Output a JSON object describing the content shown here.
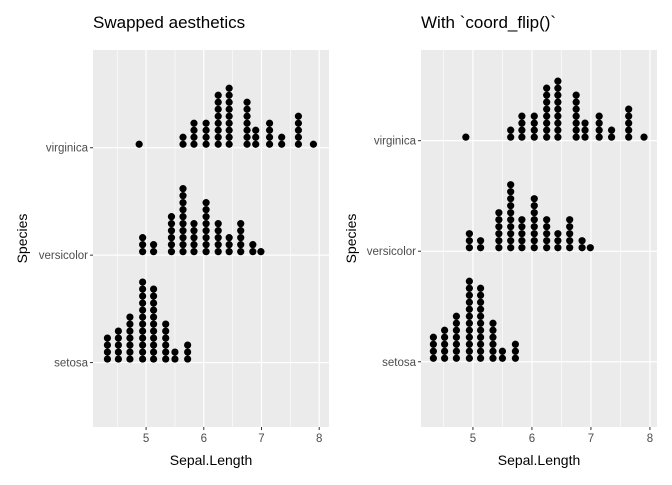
{
  "chart_data": [
    {
      "type": "dotplot",
      "title": "Swapped aesthetics",
      "xlabel": "Sepal.Length",
      "ylabel": "Species",
      "xlim": [
        4.08,
        8.17
      ],
      "ylim": [
        0.4,
        3.91
      ],
      "xticks": [
        5,
        6,
        7,
        8
      ],
      "xtick_labels": [
        "5",
        "6",
        "7",
        "8"
      ],
      "xminor": [
        4.5,
        5.5,
        6.5,
        7.5
      ],
      "categories": [
        "setosa",
        "versicolor",
        "virginica"
      ],
      "grid": true,
      "series": [
        {
          "name": "setosa",
          "bins": [
            4.33,
            4.52,
            4.72,
            4.94,
            5.13,
            5.34,
            5.5,
            5.72
          ],
          "counts": [
            4,
            5,
            7,
            12,
            11,
            6,
            2,
            3
          ]
        },
        {
          "name": "versicolor",
          "bins": [
            4.94,
            5.13,
            5.44,
            5.64,
            5.83,
            6.04,
            6.25,
            6.44,
            6.64,
            6.85,
            6.99
          ],
          "counts": [
            3,
            2,
            6,
            10,
            5,
            8,
            5,
            3,
            5,
            2,
            1
          ]
        },
        {
          "name": "virginica",
          "bins": [
            4.88,
            5.64,
            5.83,
            6.04,
            6.25,
            6.44,
            6.75,
            6.9,
            7.14,
            7.35,
            7.64,
            7.9
          ],
          "counts": [
            1,
            2,
            4,
            4,
            8,
            9,
            7,
            3,
            4,
            2,
            5,
            1
          ]
        }
      ]
    },
    {
      "type": "dotplot",
      "title": "With `coord_flip()`",
      "xlabel": "Sepal.Length",
      "ylabel": "Species",
      "xlim": [
        4.12,
        8.12
      ],
      "ylim": [
        0.41,
        3.82
      ],
      "xticks": [
        5,
        6,
        7,
        8
      ],
      "xtick_labels": [
        "5",
        "6",
        "7",
        "8"
      ],
      "xminor": [
        4.5,
        5.5,
        6.5,
        7.5
      ],
      "categories": [
        "setosa",
        "versicolor",
        "virginica"
      ],
      "grid": true,
      "series": [
        {
          "name": "setosa",
          "bins": [
            4.33,
            4.52,
            4.72,
            4.94,
            5.13,
            5.34,
            5.5,
            5.72
          ],
          "counts": [
            4,
            5,
            7,
            12,
            11,
            6,
            2,
            3
          ]
        },
        {
          "name": "versicolor",
          "bins": [
            4.94,
            5.13,
            5.44,
            5.64,
            5.83,
            6.04,
            6.25,
            6.44,
            6.64,
            6.85,
            6.99
          ],
          "counts": [
            3,
            2,
            6,
            10,
            5,
            8,
            5,
            3,
            5,
            2,
            1
          ]
        },
        {
          "name": "virginica",
          "bins": [
            4.88,
            5.64,
            5.83,
            6.04,
            6.25,
            6.44,
            6.75,
            6.9,
            7.14,
            7.35,
            7.64,
            7.9
          ],
          "counts": [
            1,
            2,
            4,
            4,
            8,
            9,
            7,
            3,
            4,
            2,
            5,
            1
          ]
        }
      ]
    }
  ]
}
